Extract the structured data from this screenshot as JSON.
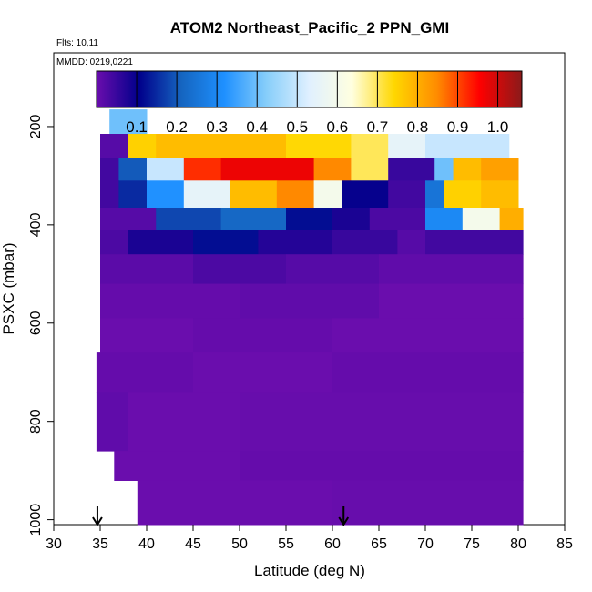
{
  "chart_data": {
    "type": "heatmap",
    "title": "ATOM2 Northeast_Pacific_2 PPN_GMI",
    "flights_label": "Flts: 10,11",
    "dates_label": "MMDD: 0219,0221",
    "xlabel": "Latitude (deg N)",
    "ylabel": "PSXC (mbar)",
    "xlim": [
      30,
      85
    ],
    "ylim": [
      1010,
      50
    ],
    "y_reversed": true,
    "x_ticks": [
      "30",
      "35",
      "40",
      "45",
      "50",
      "55",
      "60",
      "65",
      "70",
      "75",
      "80",
      "85"
    ],
    "y_ticks": [
      "200",
      "400",
      "600",
      "800",
      "1000"
    ],
    "colorbar": {
      "range": [
        0,
        1.06
      ],
      "ticks": [
        "0.1",
        "0.2",
        "0.3",
        "0.4",
        "0.5",
        "0.6",
        "0.7",
        "0.8",
        "0.9",
        "1.0"
      ],
      "colors": [
        "#6a0dad",
        "#00008b",
        "#1565c0",
        "#1e90ff",
        "#87cefa",
        "#e0f0ff",
        "#ffffe0",
        "#ffd700",
        "#ff8c00",
        "#ff0000",
        "#8b1a1a"
      ]
    },
    "flight_markers_lat": [
      34.7,
      61.2
    ],
    "bands": [
      {
        "p": [
          165,
          215
        ],
        "cells": [
          [
            36,
            40,
            0.4
          ]
        ]
      },
      {
        "p": [
          215,
          265
        ],
        "cells": [
          [
            35,
            38,
            0.02
          ],
          [
            38,
            41,
            0.75
          ],
          [
            41,
            55,
            0.78
          ],
          [
            55,
            62,
            0.74
          ],
          [
            62,
            66,
            0.7
          ],
          [
            66,
            70,
            0.55
          ],
          [
            70,
            79,
            0.5
          ]
        ]
      },
      {
        "p": [
          265,
          310
        ],
        "cells": [
          [
            35,
            37,
            0.04
          ],
          [
            37,
            40,
            0.2
          ],
          [
            40,
            44,
            0.5
          ],
          [
            44,
            48,
            0.92
          ],
          [
            48,
            58,
            0.97
          ],
          [
            58,
            62,
            0.85
          ],
          [
            62,
            66,
            0.7
          ],
          [
            66,
            71,
            0.05
          ],
          [
            71,
            73,
            0.4
          ],
          [
            73,
            76,
            0.78
          ],
          [
            76,
            80,
            0.82
          ]
        ]
      },
      {
        "p": [
          310,
          365
        ],
        "cells": [
          [
            35,
            37,
            0.04
          ],
          [
            37,
            40,
            0.15
          ],
          [
            40,
            44,
            0.32
          ],
          [
            44,
            49,
            0.55
          ],
          [
            49,
            54,
            0.78
          ],
          [
            54,
            58,
            0.85
          ],
          [
            58,
            61,
            0.6
          ],
          [
            61,
            66,
            0.1
          ],
          [
            66,
            70,
            0.04
          ],
          [
            70,
            72,
            0.25
          ],
          [
            72,
            76,
            0.75
          ],
          [
            76,
            80,
            0.78
          ]
        ]
      },
      {
        "p": [
          365,
          410
        ],
        "cells": [
          [
            35,
            41,
            0.02
          ],
          [
            41,
            48,
            0.18
          ],
          [
            48,
            55,
            0.22
          ],
          [
            55,
            60,
            0.12
          ],
          [
            60,
            64,
            0.08
          ],
          [
            64,
            70,
            0.03
          ],
          [
            70,
            74,
            0.3
          ],
          [
            74,
            78,
            0.6
          ],
          [
            78,
            80.5,
            0.8
          ]
        ]
      },
      {
        "p": [
          410,
          460
        ],
        "cells": [
          [
            35,
            38,
            0.03
          ],
          [
            38,
            45,
            0.08
          ],
          [
            45,
            52,
            0.12
          ],
          [
            52,
            60,
            0.07
          ],
          [
            60,
            67,
            0.05
          ],
          [
            67,
            70,
            0.02
          ],
          [
            70,
            80.5,
            0.04
          ]
        ]
      },
      {
        "p": [
          460,
          520
        ],
        "cells": [
          [
            35,
            45,
            0.015
          ],
          [
            45,
            55,
            0.03
          ],
          [
            55,
            65,
            0.02
          ],
          [
            65,
            80.5,
            0.01
          ]
        ]
      },
      {
        "p": [
          520,
          590
        ],
        "cells": [
          [
            35,
            50,
            0.005
          ],
          [
            50,
            65,
            0.01
          ],
          [
            65,
            80.5,
            0.0
          ]
        ]
      },
      {
        "p": [
          590,
          660
        ],
        "cells": [
          [
            35,
            45,
            0.0
          ],
          [
            45,
            60,
            0.005
          ],
          [
            60,
            80.5,
            0.0
          ]
        ]
      },
      {
        "p": [
          660,
          740
        ],
        "cells": [
          [
            34.6,
            45,
            0.005
          ],
          [
            45,
            60,
            0.0
          ],
          [
            60,
            80.5,
            0.005
          ]
        ]
      },
      {
        "p": [
          740,
          860
        ],
        "cells": [
          [
            34.6,
            38,
            0.01
          ],
          [
            38,
            50,
            0.0
          ],
          [
            50,
            80.5,
            0.003
          ]
        ]
      },
      {
        "p": [
          860,
          920
        ],
        "cells": [
          [
            36.5,
            50,
            0.0
          ],
          [
            50,
            80.5,
            0.005
          ]
        ]
      },
      {
        "p": [
          920,
          1010
        ],
        "cells": [
          [
            39,
            60,
            0.0
          ],
          [
            60,
            80.5,
            0.003
          ]
        ]
      }
    ]
  }
}
